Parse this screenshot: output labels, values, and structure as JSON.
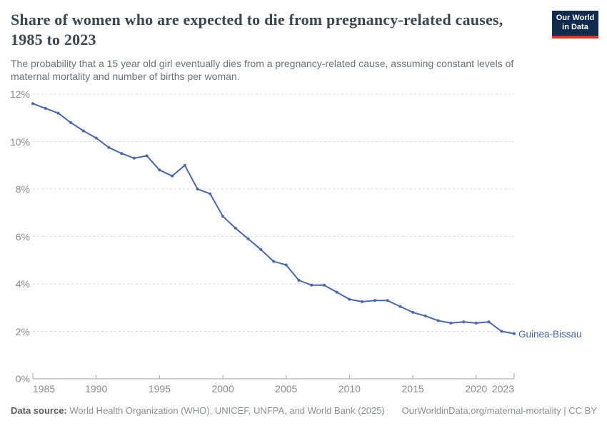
{
  "header": {
    "title": "Share of women who are expected to die from pregnancy-related causes, 1985 to 2023",
    "subtitle": "The probability that a 15 year old girl eventually dies from a pregnancy-related cause, assuming constant levels of maternal mortality and number of births per woman."
  },
  "logo": {
    "line1": "Our World",
    "line2": "in Data",
    "bg_color": "#112b4e",
    "stripe_color": "#d0392b"
  },
  "chart_data": {
    "type": "line",
    "title": "Share of women who are expected to die from pregnancy-related causes, 1985 to 2023",
    "xlabel": "",
    "ylabel": "",
    "x_range": [
      1985,
      2023
    ],
    "ylim": [
      0,
      12
    ],
    "grid": "horizontal-dashed",
    "legend_position": "end-of-line-label",
    "xticks": [
      1985,
      1990,
      1995,
      2000,
      2005,
      2010,
      2015,
      2020,
      2023
    ],
    "yticks": [
      {
        "v": 0,
        "label": "0%"
      },
      {
        "v": 2,
        "label": "2%"
      },
      {
        "v": 4,
        "label": "4%"
      },
      {
        "v": 6,
        "label": "6%"
      },
      {
        "v": 8,
        "label": "8%"
      },
      {
        "v": 10,
        "label": "10%"
      },
      {
        "v": 12,
        "label": "12%"
      }
    ],
    "series": [
      {
        "name": "Guinea-Bissau",
        "color": "#4a67a8",
        "x": [
          1985,
          1986,
          1987,
          1988,
          1989,
          1990,
          1991,
          1992,
          1993,
          1994,
          1995,
          1996,
          1997,
          1998,
          1999,
          2000,
          2001,
          2002,
          2003,
          2004,
          2005,
          2006,
          2007,
          2008,
          2009,
          2010,
          2011,
          2012,
          2013,
          2014,
          2015,
          2016,
          2017,
          2018,
          2019,
          2020,
          2021,
          2022,
          2023
        ],
        "values": [
          11.6,
          11.4,
          11.2,
          10.8,
          10.45,
          10.15,
          9.75,
          9.5,
          9.3,
          9.4,
          8.8,
          8.55,
          9.0,
          8.0,
          7.8,
          6.85,
          6.35,
          5.9,
          5.45,
          4.95,
          4.8,
          4.15,
          3.95,
          3.95,
          3.65,
          3.35,
          3.25,
          3.3,
          3.3,
          3.05,
          2.8,
          2.65,
          2.45,
          2.35,
          2.4,
          2.35,
          2.4,
          2.0,
          1.9
        ]
      }
    ]
  },
  "footer": {
    "source_label": "Data source:",
    "source_text": " World Health Organization (WHO), UNICEF, UNFPA, and World Bank (2025)",
    "credit": "OurWorldinData.org/maternal-mortality | CC BY"
  }
}
